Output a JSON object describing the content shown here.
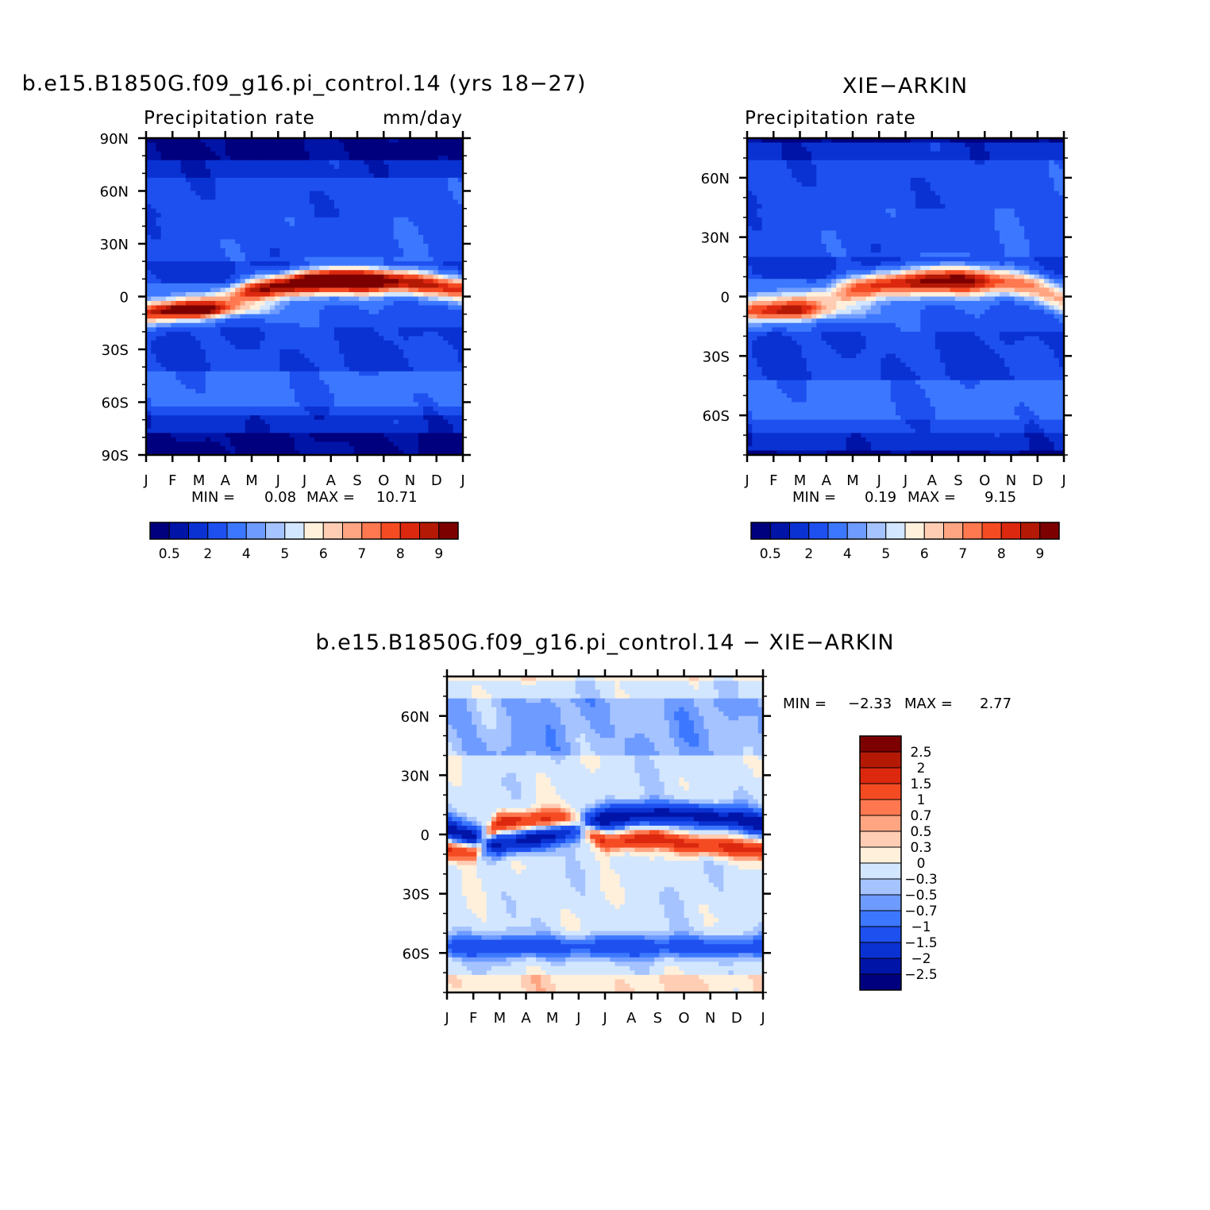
{
  "months": [
    "J",
    "F",
    "M",
    "A",
    "M",
    "J",
    "J",
    "A",
    "S",
    "O",
    "N",
    "D",
    "J"
  ],
  "precip_levels": [
    "0.5",
    "2",
    "4",
    "5",
    "6",
    "7",
    "8",
    "9"
  ],
  "precip_colors": [
    "#00007f",
    "#0014a8",
    "#0a32d2",
    "#1e50f0",
    "#3c78ff",
    "#6e9bff",
    "#a5c3ff",
    "#d2e6ff",
    "#fff0dc",
    "#ffcdb4",
    "#ffa582",
    "#ff7850",
    "#f54b23",
    "#dc280f",
    "#b41905",
    "#7d0000"
  ],
  "diff_levels": [
    "2.5",
    "2",
    "1.5",
    "1",
    "0.7",
    "0.5",
    "0.3",
    "0",
    "−0.3",
    "−0.5",
    "−0.7",
    "−1",
    "−1.5",
    "−2",
    "−2.5"
  ],
  "diff_colors": [
    "#7d0000",
    "#b41905",
    "#dc280f",
    "#f54b23",
    "#ff7850",
    "#ffa582",
    "#ffcdb4",
    "#fff0dc",
    "#d2e6ff",
    "#a5c3ff",
    "#6e9bff",
    "#3c78ff",
    "#1e50f0",
    "#0a32d2",
    "#0014a8",
    "#00007f"
  ],
  "panels": {
    "model": {
      "title": "b.e15.B1850G.f09_g16.pi_control.14 (yrs 18−27)",
      "left_label": "Precipitation rate",
      "right_label": "mm/day",
      "min_label": "MIN =",
      "min_value": "0.08",
      "max_label": "MAX =",
      "max_value": "10.71",
      "lat_ticks": [
        "90N",
        "60N",
        "30N",
        "0",
        "30S",
        "60S",
        "90S"
      ]
    },
    "obs": {
      "title": "XIE−ARKIN",
      "left_label": "Precipitation rate",
      "min_label": "MIN =",
      "min_value": "0.19",
      "max_label": "MAX =",
      "max_value": "9.15",
      "lat_ticks": [
        "60N",
        "30N",
        "0",
        "30S",
        "60S"
      ]
    },
    "diff": {
      "title": "b.e15.B1850G.f09_g16.pi_control.14 − XIE−ARKIN",
      "min_label": "MIN =",
      "min_value": "−2.33",
      "max_label": "MAX =",
      "max_value": "2.77",
      "lat_ticks": [
        "60N",
        "30N",
        "0",
        "30S",
        "60S"
      ]
    }
  },
  "chart_data": [
    {
      "type": "heatmap",
      "title": "b.e15.B1850G.f09_g16.pi_control.14 (yrs 18−27)",
      "subtitle_left": "Precipitation rate",
      "subtitle_right": "mm/day",
      "x": [
        "J",
        "F",
        "M",
        "A",
        "M",
        "J",
        "J",
        "A",
        "S",
        "O",
        "N",
        "D",
        "J"
      ],
      "y_ticks": [
        "90N",
        "60N",
        "30N",
        "0",
        "30S",
        "60S",
        "90S"
      ],
      "ylim": [
        -90,
        90
      ],
      "min": 0.08,
      "max": 10.71,
      "colorbar_levels": [
        0.5,
        2,
        4,
        5,
        6,
        7,
        8,
        9
      ],
      "itcz_peak_lat_by_month": [
        -10,
        -8,
        -6,
        -2,
        3,
        6,
        8,
        9,
        9,
        9,
        8,
        6,
        4
      ],
      "itcz_peak_value_by_month": [
        7.0,
        7.3,
        7.5,
        7.2,
        8.5,
        9.5,
        10.5,
        10.7,
        10.5,
        9.8,
        9.2,
        8.5,
        8.0
      ]
    },
    {
      "type": "heatmap",
      "title": "XIE−ARKIN",
      "subtitle_left": "Precipitation rate",
      "x": [
        "J",
        "F",
        "M",
        "A",
        "M",
        "J",
        "J",
        "A",
        "S",
        "O",
        "N",
        "D",
        "J"
      ],
      "y_ticks": [
        "60N",
        "30N",
        "0",
        "30S",
        "60S"
      ],
      "ylim": [
        -80,
        80
      ],
      "min": 0.19,
      "max": 9.15,
      "colorbar_levels": [
        0.5,
        2,
        4,
        5,
        6,
        7,
        8,
        9
      ],
      "itcz_peak_lat_by_month": [
        -7,
        -6,
        -4,
        -1,
        3,
        6,
        7,
        8,
        8,
        8,
        7,
        4,
        -2
      ],
      "itcz_peak_value_by_month": [
        6.5,
        6.7,
        6.8,
        6.5,
        7.5,
        8.3,
        8.8,
        9.1,
        9.0,
        8.5,
        7.8,
        7.0,
        6.5
      ]
    },
    {
      "type": "heatmap",
      "title": "b.e15.B1850G.f09_g16.pi_control.14 − XIE−ARKIN",
      "x": [
        "J",
        "F",
        "M",
        "A",
        "M",
        "J",
        "J",
        "A",
        "S",
        "O",
        "N",
        "D",
        "J"
      ],
      "y_ticks": [
        "60N",
        "30N",
        "0",
        "30S",
        "60S"
      ],
      "ylim": [
        -80,
        80
      ],
      "min": -2.33,
      "max": 2.77,
      "colorbar_levels": [
        2.5,
        2,
        1.5,
        1,
        0.7,
        0.5,
        0.3,
        0,
        -0.3,
        -0.5,
        -0.7,
        -1,
        -1.5,
        -2,
        -2.5
      ],
      "positive_band_lat_by_month": [
        3,
        -2,
        -5,
        -3,
        0,
        4,
        8,
        10,
        10,
        10,
        9,
        8,
        5
      ],
      "negative_band_lat_by_month": [
        -8,
        -9,
        6,
        7,
        8,
        6,
        -4,
        -3,
        -2,
        -5,
        -6,
        -7,
        -8
      ],
      "southern_ocean_positive_lat": -57
    }
  ]
}
